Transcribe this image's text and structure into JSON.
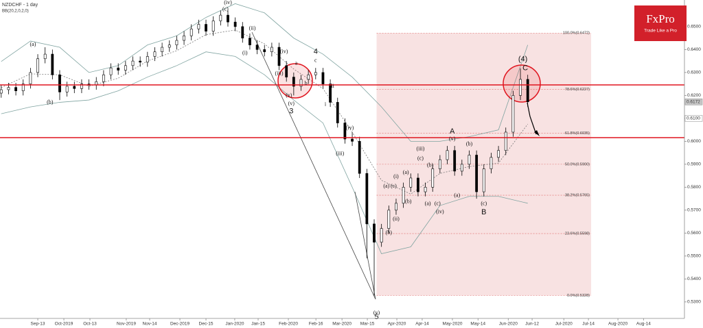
{
  "chart_data": {
    "type": "candlestick",
    "title": "NZDCHF - 1 day",
    "indicator": "BB(20,2,0,2,0)",
    "logo": {
      "name": "FxPro",
      "tagline": "Trade Like a Pro"
    },
    "xlim": [
      -15.5,
      265.3
    ],
    "ylim": [
      0.5228,
      0.6616
    ],
    "yticks": [
      {
        "value": 0.65,
        "label": "0.6500"
      },
      {
        "value": 0.64,
        "label": "0.6400"
      },
      {
        "value": 0.63,
        "label": "0.6300"
      },
      {
        "value": 0.62,
        "label": "0.6200"
      },
      {
        "value": 0.61,
        "label": "0.6100"
      },
      {
        "value": 0.6,
        "label": "0.6000"
      },
      {
        "value": 0.59,
        "label": "0.5900"
      },
      {
        "value": 0.58,
        "label": "0.5800"
      },
      {
        "value": 0.57,
        "label": "0.5700"
      },
      {
        "value": 0.56,
        "label": "0.5600"
      },
      {
        "value": 0.55,
        "label": "0.5500"
      },
      {
        "value": 0.54,
        "label": "0.5400"
      },
      {
        "value": 0.53,
        "label": "0.5300"
      }
    ],
    "xticks": [
      {
        "value": 0,
        "label": "Sep-13"
      },
      {
        "value": 10.7,
        "label": "Oct-2019"
      },
      {
        "value": 21.4,
        "label": "Oct-13"
      },
      {
        "value": 36.3,
        "label": "Nov-2019"
      },
      {
        "value": 45.9,
        "label": "Nov-14"
      },
      {
        "value": 58.3,
        "label": "Dec-2019"
      },
      {
        "value": 69,
        "label": "Dec-15"
      },
      {
        "value": 80.8,
        "label": "Jan-2020"
      },
      {
        "value": 90.4,
        "label": "Jan-15"
      },
      {
        "value": 102.8,
        "label": "Feb-2020"
      },
      {
        "value": 114.1,
        "label": "Feb-16"
      },
      {
        "value": 124.8,
        "label": "Mar-2020"
      },
      {
        "value": 135.2,
        "label": "Mar-15"
      },
      {
        "value": 147.3,
        "label": "Apr-2020"
      },
      {
        "value": 157.7,
        "label": "Apr-14"
      },
      {
        "value": 170.1,
        "label": "May-2020"
      },
      {
        "value": 180.6,
        "label": "May-14"
      },
      {
        "value": 193,
        "label": "Jun-2020"
      },
      {
        "value": 202.8,
        "label": "Jun-12"
      },
      {
        "value": 215.8,
        "label": "Jul-2020"
      },
      {
        "value": 225.9,
        "label": "Jul-14"
      },
      {
        "value": 238,
        "label": "Aug-2020"
      },
      {
        "value": 248.5,
        "label": "Aug-14"
      }
    ],
    "x": [
      -15,
      -12,
      -9,
      -6,
      -3,
      0,
      3,
      6,
      9,
      12,
      15,
      18,
      21,
      24,
      27,
      30,
      33,
      36,
      39,
      42,
      45,
      48,
      51,
      54,
      57,
      60,
      63,
      66,
      69,
      72,
      75,
      78,
      81,
      84,
      87,
      90,
      93,
      96,
      99,
      102,
      105,
      108,
      111,
      114,
      117,
      120,
      123,
      126,
      129,
      132,
      135,
      138,
      141,
      144,
      147,
      150,
      153,
      156,
      159,
      162,
      165,
      168,
      171,
      174,
      177,
      180,
      183,
      186,
      189,
      192,
      195,
      198,
      201
    ],
    "open": [
      0.621,
      0.6225,
      0.6235,
      0.622,
      0.625,
      0.63,
      0.636,
      0.638,
      0.629,
      0.6215,
      0.624,
      0.623,
      0.625,
      0.6245,
      0.626,
      0.629,
      0.632,
      0.631,
      0.633,
      0.635,
      0.6345,
      0.637,
      0.639,
      0.641,
      0.642,
      0.644,
      0.646,
      0.649,
      0.651,
      0.648,
      0.6525,
      0.655,
      0.652,
      0.65,
      0.645,
      0.642,
      0.64,
      0.639,
      0.641,
      0.633,
      0.628,
      0.624,
      0.627,
      0.629,
      0.63,
      0.625,
      0.617,
      0.608,
      0.601,
      0.6,
      0.586,
      0.564,
      0.556,
      0.562,
      0.57,
      0.573,
      0.58,
      0.584,
      0.578,
      0.58,
      0.588,
      0.592,
      0.596,
      0.587,
      0.59,
      0.594,
      0.578,
      0.588,
      0.593,
      0.596,
      0.604,
      0.62,
      0.627
    ],
    "high": [
      0.6245,
      0.6255,
      0.6255,
      0.627,
      0.632,
      0.638,
      0.641,
      0.64,
      0.631,
      0.626,
      0.626,
      0.627,
      0.627,
      0.628,
      0.631,
      0.634,
      0.634,
      0.635,
      0.637,
      0.637,
      0.639,
      0.641,
      0.643,
      0.644,
      0.646,
      0.648,
      0.651,
      0.653,
      0.653,
      0.6545,
      0.657,
      0.657,
      0.654,
      0.652,
      0.647,
      0.644,
      0.642,
      0.643,
      0.643,
      0.635,
      0.63,
      0.629,
      0.631,
      0.632,
      0.632,
      0.627,
      0.619,
      0.61,
      0.604,
      0.602,
      0.588,
      0.566,
      0.564,
      0.572,
      0.575,
      0.582,
      0.586,
      0.586,
      0.582,
      0.59,
      0.594,
      0.598,
      0.598,
      0.592,
      0.596,
      0.596,
      0.59,
      0.595,
      0.598,
      0.606,
      0.622,
      0.6318,
      0.629
    ],
    "low": [
      0.619,
      0.6205,
      0.62,
      0.62,
      0.623,
      0.628,
      0.634,
      0.627,
      0.618,
      0.6195,
      0.621,
      0.621,
      0.6225,
      0.6225,
      0.624,
      0.627,
      0.629,
      0.629,
      0.631,
      0.6325,
      0.6325,
      0.635,
      0.637,
      0.639,
      0.64,
      0.642,
      0.644,
      0.647,
      0.646,
      0.646,
      0.6505,
      0.65,
      0.648,
      0.643,
      0.64,
      0.638,
      0.637,
      0.637,
      0.631,
      0.626,
      0.62,
      0.622,
      0.625,
      0.627,
      0.623,
      0.615,
      0.606,
      0.599,
      0.598,
      0.584,
      0.549,
      0.5328,
      0.554,
      0.56,
      0.568,
      0.571,
      0.578,
      0.576,
      0.576,
      0.578,
      0.586,
      0.59,
      0.585,
      0.585,
      0.588,
      0.575,
      0.576,
      0.586,
      0.591,
      0.594,
      0.602,
      0.618,
      0.615
    ],
    "close": [
      0.6225,
      0.6235,
      0.622,
      0.625,
      0.63,
      0.636,
      0.638,
      0.629,
      0.6215,
      0.624,
      0.623,
      0.625,
      0.6245,
      0.626,
      0.629,
      0.632,
      0.631,
      0.633,
      0.635,
      0.6345,
      0.637,
      0.639,
      0.641,
      0.642,
      0.644,
      0.646,
      0.649,
      0.651,
      0.648,
      0.6525,
      0.655,
      0.652,
      0.65,
      0.645,
      0.642,
      0.64,
      0.639,
      0.641,
      0.633,
      0.628,
      0.624,
      0.627,
      0.629,
      0.63,
      0.625,
      0.617,
      0.608,
      0.601,
      0.6,
      0.586,
      0.564,
      0.556,
      0.562,
      0.57,
      0.573,
      0.58,
      0.584,
      0.578,
      0.58,
      0.588,
      0.592,
      0.596,
      0.587,
      0.59,
      0.594,
      0.578,
      0.588,
      0.593,
      0.596,
      0.604,
      0.62,
      0.627,
      0.6172
    ],
    "bands": {
      "x": [
        -15,
        -3,
        9,
        21,
        33,
        45,
        57,
        69,
        81,
        93,
        105,
        117,
        129,
        141,
        153,
        165,
        177,
        189,
        201
      ],
      "upper": [
        0.6348,
        0.6437,
        0.641,
        0.63,
        0.633,
        0.642,
        0.646,
        0.654,
        0.66,
        0.656,
        0.645,
        0.638,
        0.628,
        0.615,
        0.6,
        0.6,
        0.602,
        0.605,
        0.642
      ],
      "middle": [
        0.6234,
        0.6294,
        0.629,
        0.624,
        0.6275,
        0.635,
        0.6395,
        0.6465,
        0.6485,
        0.6425,
        0.6315,
        0.623,
        0.604,
        0.583,
        0.577,
        0.586,
        0.589,
        0.5905,
        0.6075
      ],
      "lower": [
        0.612,
        0.615,
        0.617,
        0.618,
        0.622,
        0.628,
        0.633,
        0.639,
        0.637,
        0.629,
        0.618,
        0.608,
        0.58,
        0.551,
        0.554,
        0.572,
        0.576,
        0.576,
        0.573
      ],
      "color": "#7fa3a0"
    },
    "fibonacci": {
      "x": [
        139,
        227
      ],
      "color": "#e8a0a0",
      "levels": [
        {
          "value": 0.6472,
          "label": "100.0%(0.6472)"
        },
        {
          "value": 0.6227,
          "label": "78.6%(0.6227)"
        },
        {
          "value": 0.6035,
          "label": "61.8%(0.6035)"
        },
        {
          "value": 0.59,
          "label": "50.0%(0.5900)"
        },
        {
          "value": 0.5765,
          "label": "38.2%(0.5765)"
        },
        {
          "value": 0.5598,
          "label": "23.6%(0.5598)"
        },
        {
          "value": 0.5328,
          "label": "0.0%(0.5328)"
        }
      ]
    },
    "levels": [
      0.6246,
      0.6016
    ],
    "level_color": "#e0141e",
    "price_tags": [
      {
        "value": 0.6172,
        "label": "0.6172"
      },
      {
        "value": 0.61,
        "label": "0.6100"
      }
    ],
    "annotations": [
      {
        "text": "(a)",
        "x": -2,
        "y": 0.6422
      },
      {
        "text": "(b)",
        "x": 5,
        "y": 0.6169
      },
      {
        "text": "(iv)",
        "x": 78,
        "y": 0.6604
      },
      {
        "text": "(c)",
        "x": 77,
        "y": 0.6575
      },
      {
        "text": "(i)",
        "x": 85,
        "y": 0.6384
      },
      {
        "text": "(ii)",
        "x": 88,
        "y": 0.6491
      },
      {
        "text": "(iv)",
        "x": 101,
        "y": 0.639
      },
      {
        "text": "(iii)",
        "x": 99,
        "y": 0.6294
      },
      {
        "text": "(v)",
        "x": 103,
        "y": 0.6199
      },
      {
        "text": "(v)",
        "x": 104,
        "y": 0.6163
      },
      {
        "text": "3",
        "x": 104,
        "y": 0.613
      },
      {
        "text": "a",
        "x": 106,
        "y": 0.6339
      },
      {
        "text": "b",
        "x": 110,
        "y": 0.6252
      },
      {
        "text": "4",
        "x": 114,
        "y": 0.639
      },
      {
        "text": "c",
        "x": 114,
        "y": 0.6351
      },
      {
        "text": "ii",
        "x": 121,
        "y": 0.624
      },
      {
        "text": "i",
        "x": 118,
        "y": 0.616
      },
      {
        "text": "(iv)",
        "x": 128,
        "y": 0.6058
      },
      {
        "text": "(iii)",
        "x": 124,
        "y": 0.5945
      },
      {
        "text": "(v)",
        "x": 139,
        "y": 0.5252
      },
      {
        "text": "5",
        "x": 139,
        "y": 0.5233
      },
      {
        "text": "(a)",
        "x": 143,
        "y": 0.5804
      },
      {
        "text": "(b)",
        "x": 144,
        "y": 0.5601
      },
      {
        "text": "(i)",
        "x": 147,
        "y": 0.5846
      },
      {
        "text": "(ii)",
        "x": 147,
        "y": 0.5661
      },
      {
        "text": "(c)",
        "x": 146,
        "y": 0.5804
      },
      {
        "text": "(b)",
        "x": 152,
        "y": 0.5736
      },
      {
        "text": "(a)",
        "x": 151,
        "y": 0.5864
      },
      {
        "text": "(iii)",
        "x": 157,
        "y": 0.5966
      },
      {
        "text": "(c)",
        "x": 157,
        "y": 0.5924
      },
      {
        "text": "(b)",
        "x": 161,
        "y": 0.5894
      },
      {
        "text": "(a)",
        "x": 160,
        "y": 0.5727
      },
      {
        "text": "(c)",
        "x": 164,
        "y": 0.5727
      },
      {
        "text": "(iv)",
        "x": 165,
        "y": 0.5691
      },
      {
        "text": "(v)",
        "x": 170,
        "y": 0.601
      },
      {
        "text": "A",
        "x": 170,
        "y": 0.6043
      },
      {
        "text": "(b)",
        "x": 177,
        "y": 0.5987
      },
      {
        "text": "(a)",
        "x": 172,
        "y": 0.5763
      },
      {
        "text": "(c)",
        "x": 183,
        "y": 0.5727
      },
      {
        "text": "B",
        "x": 183,
        "y": 0.5691
      },
      {
        "text": "(4)",
        "x": 199,
        "y": 0.6357
      },
      {
        "text": "C",
        "x": 200,
        "y": 0.6318
      }
    ]
  }
}
